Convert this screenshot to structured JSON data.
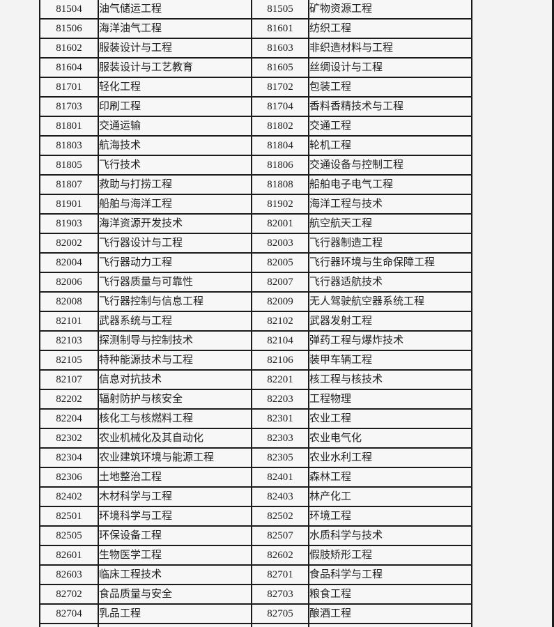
{
  "page": {
    "background_color": "#f3f3f3",
    "table_border_color": "#1a1a1a",
    "cell_background_color": "#f7f7f7"
  },
  "table": {
    "rows": [
      {
        "code_left": "81504",
        "name_left": "油气储运工程",
        "code_right": "81505",
        "name_right": "矿物资源工程"
      },
      {
        "code_left": "81506",
        "name_left": "海洋油气工程",
        "code_right": "81601",
        "name_right": "纺织工程"
      },
      {
        "code_left": "81602",
        "name_left": "服装设计与工程",
        "code_right": "81603",
        "name_right": "非织造材料与工程"
      },
      {
        "code_left": "81604",
        "name_left": "服装设计与工艺教育",
        "code_right": "81605",
        "name_right": "丝绸设计与工程"
      },
      {
        "code_left": "81701",
        "name_left": "轻化工程",
        "code_right": "81702",
        "name_right": "包装工程"
      },
      {
        "code_left": "81703",
        "name_left": "印刷工程",
        "code_right": "81704",
        "name_right": "香料香精技术与工程"
      },
      {
        "code_left": "81801",
        "name_left": "交通运输",
        "code_right": "81802",
        "name_right": "交通工程"
      },
      {
        "code_left": "81803",
        "name_left": "航海技术",
        "code_right": "81804",
        "name_right": "轮机工程"
      },
      {
        "code_left": "81805",
        "name_left": "飞行技术",
        "code_right": "81806",
        "name_right": "交通设备与控制工程"
      },
      {
        "code_left": "81807",
        "name_left": "救助与打捞工程",
        "code_right": "81808",
        "name_right": "船舶电子电气工程"
      },
      {
        "code_left": "81901",
        "name_left": "船舶与海洋工程",
        "code_right": "81902",
        "name_right": "海洋工程与技术"
      },
      {
        "code_left": "81903",
        "name_left": "海洋资源开发技术",
        "code_right": "82001",
        "name_right": "航空航天工程"
      },
      {
        "code_left": "82002",
        "name_left": "飞行器设计与工程",
        "code_right": "82003",
        "name_right": "飞行器制造工程"
      },
      {
        "code_left": "82004",
        "name_left": "飞行器动力工程",
        "code_right": "82005",
        "name_right": "飞行器环境与生命保障工程"
      },
      {
        "code_left": "82006",
        "name_left": "飞行器质量与可靠性",
        "code_right": "82007",
        "name_right": "飞行器适航技术"
      },
      {
        "code_left": "82008",
        "name_left": "飞行器控制与信息工程",
        "code_right": "82009",
        "name_right": "无人驾驶航空器系统工程"
      },
      {
        "code_left": "82101",
        "name_left": "武器系统与工程",
        "code_right": "82102",
        "name_right": "武器发射工程"
      },
      {
        "code_left": "82103",
        "name_left": "探测制导与控制技术",
        "code_right": "82104",
        "name_right": "弹药工程与爆炸技术"
      },
      {
        "code_left": "82105",
        "name_left": "特种能源技术与工程",
        "code_right": "82106",
        "name_right": "装甲车辆工程"
      },
      {
        "code_left": "82107",
        "name_left": "信息对抗技术",
        "code_right": "82201",
        "name_right": "核工程与核技术"
      },
      {
        "code_left": "82202",
        "name_left": "辐射防护与核安全",
        "code_right": "82203",
        "name_right": "工程物理"
      },
      {
        "code_left": "82204",
        "name_left": "核化工与核燃料工程",
        "code_right": "82301",
        "name_right": "农业工程"
      },
      {
        "code_left": "82302",
        "name_left": "农业机械化及其自动化",
        "code_right": "82303",
        "name_right": "农业电气化"
      },
      {
        "code_left": "82304",
        "name_left": "农业建筑环境与能源工程",
        "code_right": "82305",
        "name_right": "农业水利工程"
      },
      {
        "code_left": "82306",
        "name_left": "土地整治工程",
        "code_right": "82401",
        "name_right": "森林工程"
      },
      {
        "code_left": "82402",
        "name_left": "木材科学与工程",
        "code_right": "82403",
        "name_right": "林产化工"
      },
      {
        "code_left": "82501",
        "name_left": "环境科学与工程",
        "code_right": "82502",
        "name_right": "环境工程"
      },
      {
        "code_left": "82505",
        "name_left": "环保设备工程",
        "code_right": "82507",
        "name_right": "水质科学与技术"
      },
      {
        "code_left": "82601",
        "name_left": "生物医学工程",
        "code_right": "82602",
        "name_right": "假肢矫形工程"
      },
      {
        "code_left": "82603",
        "name_left": "临床工程技术",
        "code_right": "82701",
        "name_right": "食品科学与工程"
      },
      {
        "code_left": "82702",
        "name_left": "食品质量与安全",
        "code_right": "82703",
        "name_right": "粮食工程"
      },
      {
        "code_left": "82704",
        "name_left": "乳品工程",
        "code_right": "82705",
        "name_right": "酿酒工程"
      }
    ]
  }
}
